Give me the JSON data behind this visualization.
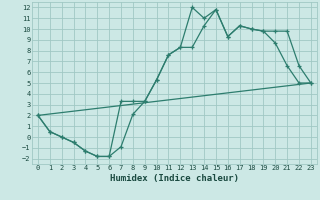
{
  "xlabel": "Humidex (Indice chaleur)",
  "xlim": [
    -0.5,
    23.5
  ],
  "ylim": [
    -2.5,
    12.5
  ],
  "xticks": [
    0,
    1,
    2,
    3,
    4,
    5,
    6,
    7,
    8,
    9,
    10,
    11,
    12,
    13,
    14,
    15,
    16,
    17,
    18,
    19,
    20,
    21,
    22,
    23
  ],
  "yticks": [
    -2,
    -1,
    0,
    1,
    2,
    3,
    4,
    5,
    6,
    7,
    8,
    9,
    10,
    11,
    12
  ],
  "bg_color": "#cce8e5",
  "grid_color": "#a0c8c4",
  "line_color": "#2d7d6e",
  "line1_x": [
    0,
    1,
    2,
    3,
    4,
    5,
    6,
    7,
    8,
    9,
    10,
    11,
    12,
    13,
    14,
    15,
    16,
    17,
    18,
    19,
    20,
    21,
    22,
    23
  ],
  "line1_y": [
    2.0,
    0.5,
    0.0,
    -0.5,
    -1.3,
    -1.8,
    -1.8,
    -0.9,
    2.1,
    3.3,
    5.3,
    7.6,
    8.3,
    12.0,
    11.0,
    11.8,
    9.3,
    10.3,
    10.0,
    9.8,
    8.7,
    6.6,
    5.0,
    5.0
  ],
  "line2_x": [
    0,
    1,
    2,
    3,
    4,
    5,
    6,
    7,
    8,
    9,
    10,
    11,
    12,
    13,
    14,
    15,
    16,
    17,
    18,
    19,
    20,
    21,
    22,
    23
  ],
  "line2_y": [
    2.0,
    0.5,
    0.0,
    -0.5,
    -1.3,
    -1.8,
    -1.8,
    3.3,
    3.3,
    3.3,
    5.3,
    7.6,
    8.3,
    8.3,
    10.3,
    11.8,
    9.3,
    10.3,
    10.0,
    9.8,
    9.8,
    9.8,
    6.6,
    5.0
  ],
  "line3_x": [
    0,
    23
  ],
  "line3_y": [
    2.0,
    5.0
  ]
}
